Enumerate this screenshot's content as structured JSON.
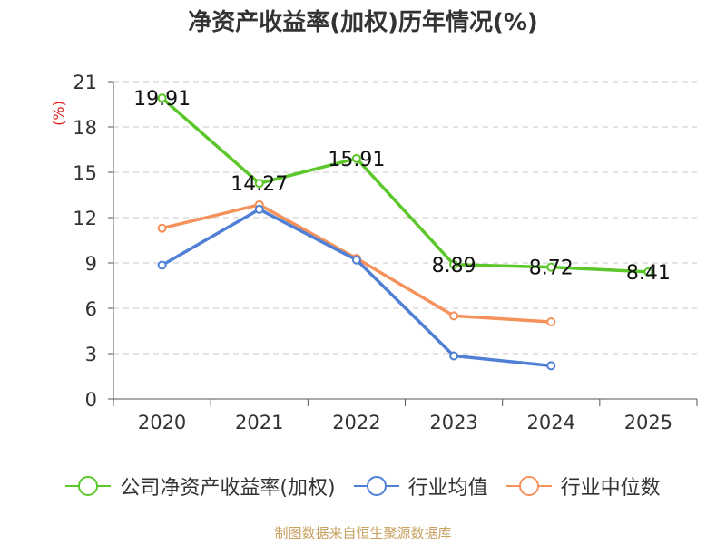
{
  "chart_data": {
    "type": "line",
    "title": "净资产收益率(加权)历年情况(%)",
    "ylabel": "(%)",
    "xlabel": "",
    "ylim": [
      0,
      21
    ],
    "yticks": [
      0,
      3,
      6,
      9,
      12,
      15,
      18,
      21
    ],
    "categories": [
      "2020",
      "2021",
      "2022",
      "2023",
      "2024",
      "2025"
    ],
    "series": [
      {
        "name": "公司净资产收益率(加权)",
        "color": "#5cc72a",
        "values": [
          19.91,
          14.27,
          15.91,
          8.89,
          8.72,
          8.41
        ],
        "labels": [
          "19.91",
          "14.27",
          "15.91",
          "8.89",
          "8.72",
          "8.41"
        ]
      },
      {
        "name": "行业均值",
        "color": "#5080d6",
        "values": [
          8.85,
          12.55,
          9.2,
          2.85,
          2.2,
          null
        ]
      },
      {
        "name": "行业中位数",
        "color": "#f5915a",
        "values": [
          11.3,
          12.85,
          9.3,
          5.5,
          5.1,
          null
        ]
      }
    ],
    "grid": true,
    "legend_position": "bottom"
  },
  "footer": {
    "source": "制图数据来自恒生聚源数据库"
  }
}
